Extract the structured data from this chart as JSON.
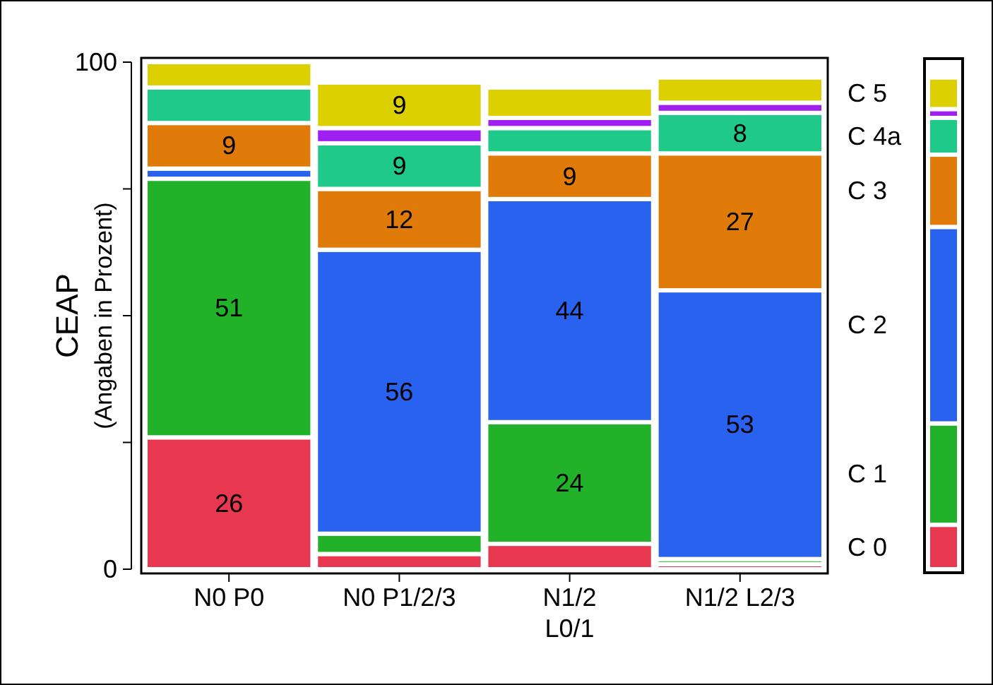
{
  "chart_data": {
    "type": "bar",
    "stacked": true,
    "ylabel": "CEAP\n(Angaben in Prozent)",
    "categories": [
      "N0 P0",
      "N0 P1/2/3",
      "N1/2\nL0/1",
      "N1/2 L2/3"
    ],
    "ylim": [
      0,
      100
    ],
    "yticks": [
      0,
      {
        "value": 25,
        "label": null
      },
      {
        "value": 50,
        "label": null
      },
      {
        "value": 75,
        "label": null
      },
      100
    ],
    "legend": "right",
    "series": [
      {
        "name": "C 0",
        "color": "#e8384f",
        "values": [
          26,
          3,
          5,
          1
        ],
        "value_labels": [
          "26",
          null,
          null,
          null
        ]
      },
      {
        "name": "C 1",
        "color": "#22b22a",
        "values": [
          51,
          4,
          24,
          1
        ],
        "value_labels": [
          "51",
          null,
          "24",
          null
        ]
      },
      {
        "name": "C 2",
        "color": "#2a62f0",
        "values": [
          2,
          56,
          44,
          53
        ],
        "value_labels": [
          null,
          "56",
          "44",
          "53"
        ]
      },
      {
        "name": "C 3",
        "color": "#e07b0a",
        "values": [
          9,
          12,
          9,
          27
        ],
        "value_labels": [
          "9",
          "12",
          "9",
          "27"
        ]
      },
      {
        "name": "C 4a",
        "color": "#1ec98a",
        "values": [
          7,
          9,
          5,
          8
        ],
        "value_labels": [
          null,
          "9",
          null,
          "8"
        ]
      },
      {
        "color": "#a020f0",
        "values": [
          0,
          3,
          2,
          2
        ],
        "value_labels": [
          null,
          null,
          null,
          null
        ]
      },
      {
        "name": "C 5",
        "color": "#ddd000",
        "values": [
          5,
          9,
          6,
          5
        ],
        "value_labels": [
          null,
          "9",
          null,
          null
        ]
      },
      {
        "color": "#ffffff",
        "values": [
          0,
          4,
          5,
          3
        ],
        "value_labels": [
          null,
          null,
          null,
          null
        ]
      }
    ]
  }
}
